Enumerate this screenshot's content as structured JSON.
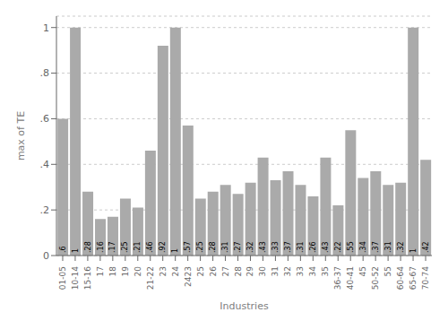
{
  "chart_data": {
    "type": "bar",
    "xlabel": "Industries",
    "ylabel": "max of TE",
    "categories": [
      "01-05",
      "10-14",
      "15-16",
      "17",
      "18",
      "19",
      "20",
      "21-22",
      "23",
      "24",
      "2423",
      "25",
      "26",
      "27",
      "28",
      "29",
      "30",
      "31",
      "32",
      "33",
      "34",
      "35",
      "36-37",
      "40-41",
      "45",
      "50-52",
      "55",
      "60-64",
      "65-67",
      "70-74"
    ],
    "values": [
      0.6,
      1.0,
      0.28,
      0.16,
      0.17,
      0.25,
      0.21,
      0.46,
      0.92,
      1.0,
      0.57,
      0.25,
      0.28,
      0.31,
      0.27,
      0.32,
      0.43,
      0.33,
      0.37,
      0.31,
      0.26,
      0.43,
      0.22,
      0.55,
      0.34,
      0.37,
      0.31,
      0.32,
      1.0,
      0.42
    ],
    "value_labels": [
      ".6",
      "1",
      ".28",
      ".16",
      ".17",
      ".25",
      ".21",
      ".46",
      ".92",
      "1",
      ".57",
      ".25",
      ".28",
      ".31",
      ".27",
      ".32",
      ".43",
      ".33",
      ".37",
      ".31",
      ".26",
      ".43",
      ".22",
      ".55",
      ".34",
      ".37",
      ".31",
      ".32",
      "1",
      ".42"
    ],
    "data_labels": true,
    "color": "#aaaaaa",
    "ylim": [
      0,
      1.05
    ],
    "yticks": [
      0,
      {
        "value": 0.2,
        "label": ".2"
      },
      {
        "value": 0.4,
        "label": ".4"
      },
      {
        "value": 0.6,
        "label": ".6"
      },
      {
        "value": 0.8,
        "label": ".8"
      },
      1
    ],
    "grid": true
  }
}
